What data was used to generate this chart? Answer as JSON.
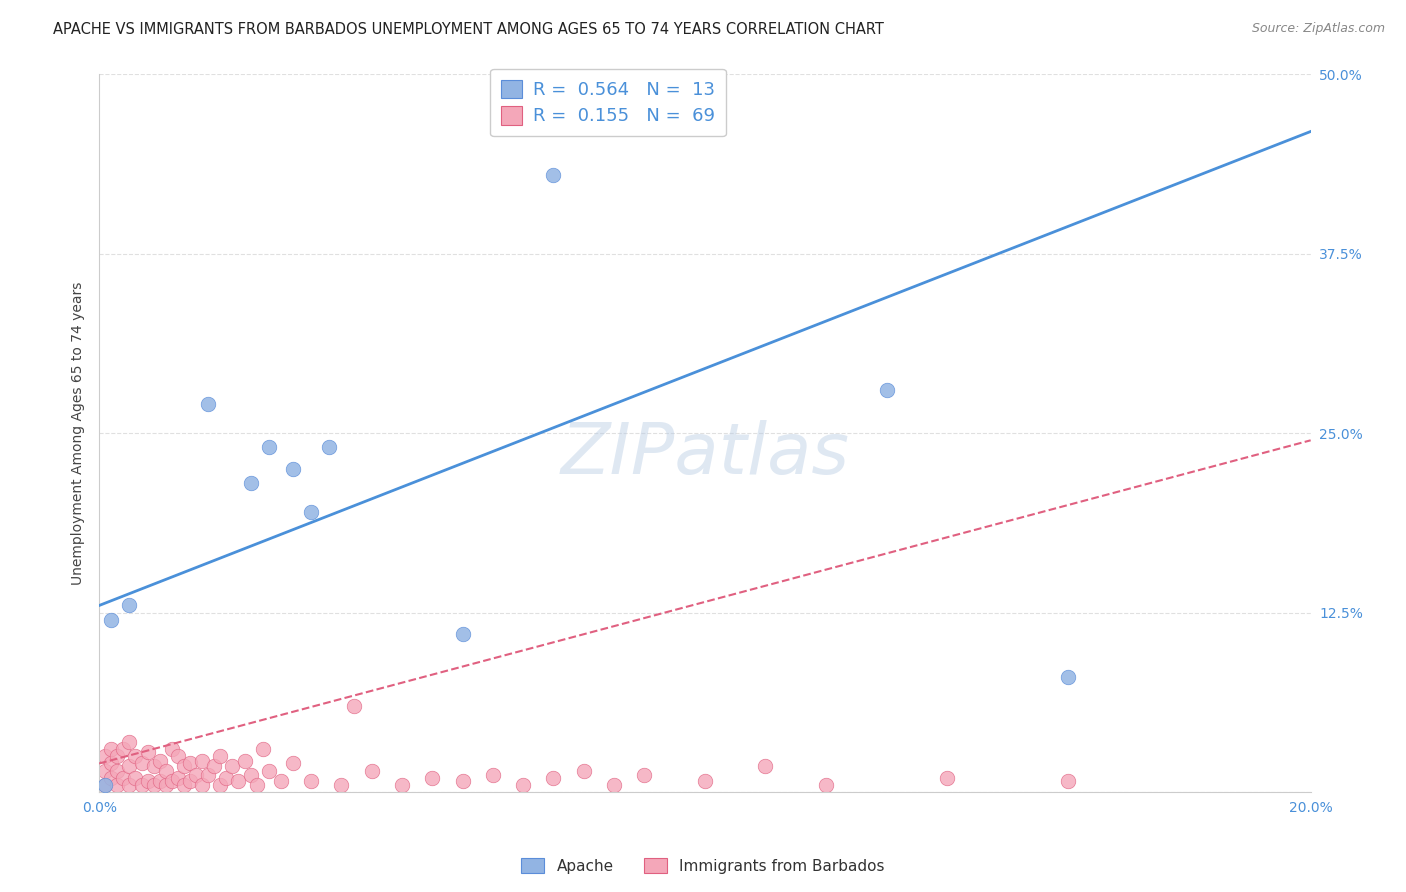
{
  "title": "APACHE VS IMMIGRANTS FROM BARBADOS UNEMPLOYMENT AMONG AGES 65 TO 74 YEARS CORRELATION CHART",
  "source": "Source: ZipAtlas.com",
  "ylabel": "Unemployment Among Ages 65 to 74 years",
  "xlim": [
    0.0,
    0.2
  ],
  "ylim": [
    0.0,
    0.5
  ],
  "xticks": [
    0.0,
    0.05,
    0.1,
    0.15,
    0.2
  ],
  "xticklabels": [
    "0.0%",
    "",
    "",
    "",
    "20.0%"
  ],
  "yticks": [
    0.0,
    0.125,
    0.25,
    0.375,
    0.5
  ],
  "yticklabels": [
    "",
    "12.5%",
    "25.0%",
    "37.5%",
    "50.0%"
  ],
  "apache_color": "#92b4e3",
  "apache_edge_color": "#5b8dd9",
  "barbados_color": "#f4a7b9",
  "barbados_edge_color": "#e06080",
  "apache_R": 0.564,
  "apache_N": 13,
  "barbados_R": 0.155,
  "barbados_N": 69,
  "watermark": "ZIPatlas",
  "apache_line_x0": 0.0,
  "apache_line_y0": 0.13,
  "apache_line_x1": 0.2,
  "apache_line_y1": 0.46,
  "barbados_line_x0": 0.0,
  "barbados_line_y0": 0.02,
  "barbados_line_x1": 0.2,
  "barbados_line_y1": 0.245,
  "apache_scatter_x": [
    0.001,
    0.002,
    0.018,
    0.025,
    0.028,
    0.035,
    0.06,
    0.075,
    0.13,
    0.005,
    0.032,
    0.038,
    0.16
  ],
  "apache_scatter_y": [
    0.005,
    0.12,
    0.27,
    0.215,
    0.24,
    0.195,
    0.11,
    0.43,
    0.28,
    0.13,
    0.225,
    0.24,
    0.08
  ],
  "barbados_scatter_x": [
    0.001,
    0.001,
    0.001,
    0.002,
    0.002,
    0.002,
    0.003,
    0.003,
    0.003,
    0.004,
    0.004,
    0.005,
    0.005,
    0.005,
    0.006,
    0.006,
    0.007,
    0.007,
    0.008,
    0.008,
    0.009,
    0.009,
    0.01,
    0.01,
    0.011,
    0.011,
    0.012,
    0.012,
    0.013,
    0.013,
    0.014,
    0.014,
    0.015,
    0.015,
    0.016,
    0.017,
    0.017,
    0.018,
    0.019,
    0.02,
    0.02,
    0.021,
    0.022,
    0.023,
    0.024,
    0.025,
    0.026,
    0.027,
    0.028,
    0.03,
    0.032,
    0.035,
    0.04,
    0.042,
    0.045,
    0.05,
    0.055,
    0.06,
    0.065,
    0.07,
    0.075,
    0.08,
    0.085,
    0.09,
    0.1,
    0.11,
    0.12,
    0.14,
    0.16
  ],
  "barbados_scatter_y": [
    0.005,
    0.015,
    0.025,
    0.01,
    0.02,
    0.03,
    0.005,
    0.015,
    0.025,
    0.01,
    0.03,
    0.005,
    0.018,
    0.035,
    0.01,
    0.025,
    0.005,
    0.02,
    0.008,
    0.028,
    0.005,
    0.018,
    0.008,
    0.022,
    0.005,
    0.015,
    0.008,
    0.03,
    0.01,
    0.025,
    0.005,
    0.018,
    0.008,
    0.02,
    0.012,
    0.005,
    0.022,
    0.012,
    0.018,
    0.005,
    0.025,
    0.01,
    0.018,
    0.008,
    0.022,
    0.012,
    0.005,
    0.03,
    0.015,
    0.008,
    0.02,
    0.008,
    0.005,
    0.06,
    0.015,
    0.005,
    0.01,
    0.008,
    0.012,
    0.005,
    0.01,
    0.015,
    0.005,
    0.012,
    0.008,
    0.018,
    0.005,
    0.01,
    0.008
  ],
  "title_fontsize": 10.5,
  "axis_label_fontsize": 10,
  "tick_fontsize": 10,
  "legend_fontsize": 13,
  "watermark_fontsize": 52,
  "background_color": "#ffffff",
  "grid_color": "#e0e0e0",
  "line_color": "#4a90d9",
  "tick_color": "#4a90d9",
  "source_color": "#888888",
  "source_fontsize": 9
}
